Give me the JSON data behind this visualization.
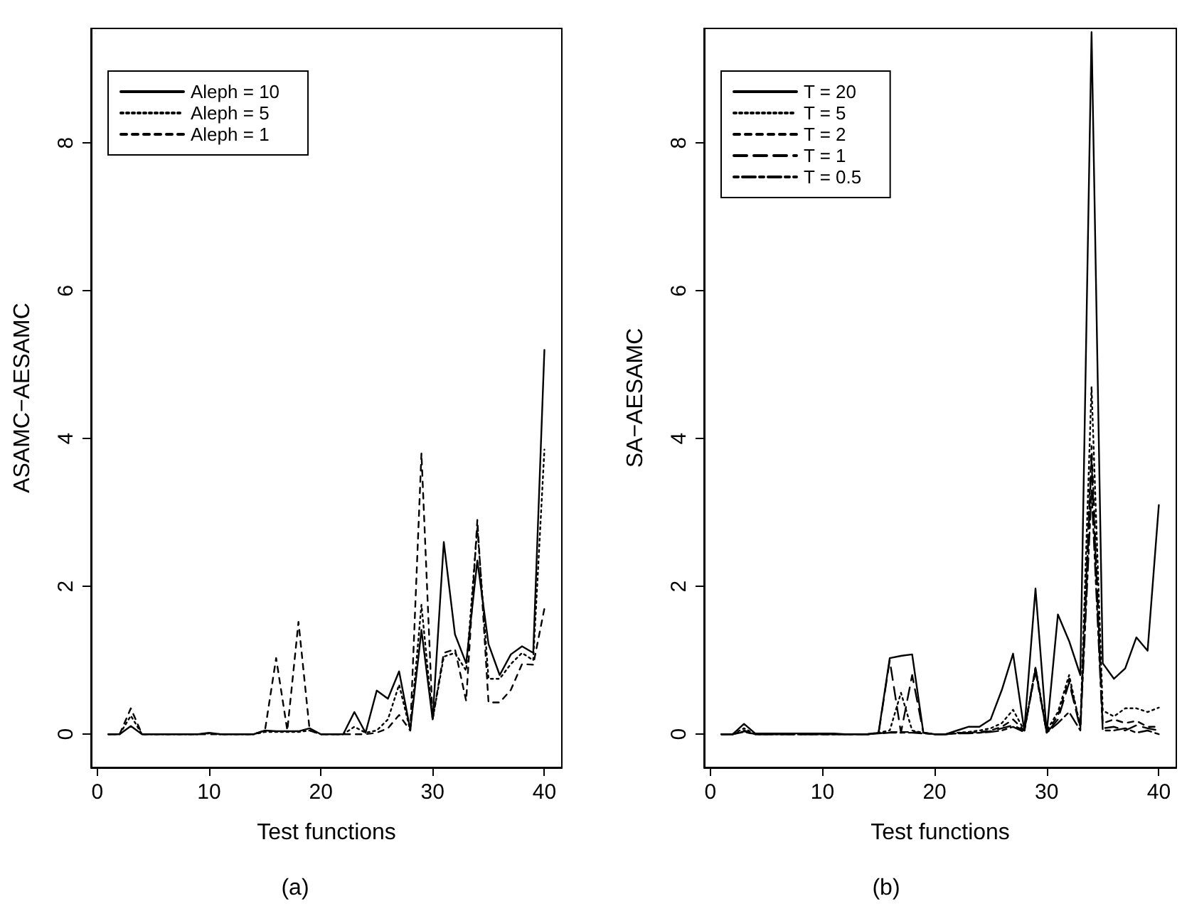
{
  "chart_data": [
    {
      "type": "line",
      "xlabel": "Test functions",
      "ylabel": "ASAMC−AESAMC",
      "annotations": [
        "(a)"
      ],
      "legend": "top left",
      "grid": false,
      "marker": "none",
      "x": [
        1,
        2,
        3,
        4,
        5,
        6,
        7,
        8,
        9,
        10,
        11,
        12,
        13,
        14,
        15,
        16,
        17,
        18,
        19,
        20,
        21,
        22,
        23,
        24,
        25,
        26,
        27,
        28,
        29,
        30,
        31,
        32,
        33,
        34,
        35,
        36,
        37,
        38,
        39,
        40
      ],
      "xlim": [
        -0.56,
        41.56
      ],
      "xticks": [
        0,
        10,
        20,
        30,
        40
      ],
      "ylim": [
        -0.45,
        9.55
      ],
      "yticks": [
        0,
        2,
        4,
        6,
        8
      ],
      "series": [
        {
          "name": "Aleph = 10",
          "color": "#000000",
          "line_style": "solid",
          "values": [
            0,
            0,
            0.11,
            0,
            0,
            0,
            0,
            0,
            0,
            0.02,
            0,
            0,
            0,
            0,
            0.05,
            0.04,
            0.04,
            0.04,
            0.08,
            0,
            0,
            0,
            0.3,
            0.02,
            0.59,
            0.48,
            0.85,
            0.06,
            1.41,
            0.2,
            2.6,
            1.35,
            0.96,
            2.35,
            1.22,
            0.8,
            1.08,
            1.19,
            1.1,
            5.2
          ]
        },
        {
          "name": "Aleph = 5",
          "color": "#000000",
          "line_style": "dotted",
          "values": [
            0,
            0,
            0.25,
            0,
            0,
            0,
            0,
            0,
            0,
            0.01,
            0,
            0,
            0,
            0,
            0.03,
            0.03,
            0.03,
            0.03,
            0.05,
            0,
            0,
            0,
            0.1,
            0.02,
            0.05,
            0.2,
            0.67,
            0.05,
            1.75,
            0.2,
            1.05,
            1.1,
            0.86,
            2.8,
            0.75,
            0.75,
            0.95,
            1.1,
            1.0,
            3.85
          ]
        },
        {
          "name": "Aleph = 1",
          "color": "#000000",
          "line_style": "dashed",
          "values": [
            0,
            0,
            0.35,
            0,
            0,
            0,
            0,
            0,
            0,
            0,
            0,
            0,
            0,
            0,
            0.05,
            1.03,
            0.05,
            1.52,
            0.05,
            0,
            0,
            0,
            0,
            0,
            0.02,
            0.08,
            0.26,
            0.05,
            3.8,
            0.2,
            1.1,
            1.15,
            0.45,
            2.9,
            0.43,
            0.43,
            0.6,
            0.95,
            0.94,
            1.7
          ]
        }
      ]
    },
    {
      "type": "line",
      "xlabel": "Test functions",
      "ylabel": "SA−AESAMC",
      "annotations": [
        "(b)"
      ],
      "legend": "top left",
      "grid": false,
      "marker": "none",
      "x": [
        1,
        2,
        3,
        4,
        5,
        6,
        7,
        8,
        9,
        10,
        11,
        12,
        13,
        14,
        15,
        16,
        17,
        18,
        19,
        20,
        21,
        22,
        23,
        24,
        25,
        26,
        27,
        28,
        29,
        30,
        31,
        32,
        33,
        34,
        35,
        36,
        37,
        38,
        39,
        40
      ],
      "xlim": [
        -0.56,
        41.56
      ],
      "xticks": [
        0,
        10,
        20,
        30,
        40
      ],
      "ylim": [
        -0.45,
        9.55
      ],
      "yticks": [
        0,
        2,
        4,
        6,
        8
      ],
      "series": [
        {
          "name": "T = 20",
          "color": "#000000",
          "line_style": "solid",
          "values": [
            0,
            0,
            0.14,
            0.01,
            0.01,
            0.01,
            0.01,
            0.01,
            0.01,
            0.01,
            0.01,
            0,
            0,
            0,
            0.02,
            1.03,
            1.06,
            1.08,
            0.02,
            0,
            0,
            0.05,
            0.1,
            0.1,
            0.2,
            0.6,
            1.09,
            0.05,
            1.97,
            0.02,
            1.62,
            1.26,
            0.8,
            9.5,
            0.96,
            0.75,
            0.89,
            1.31,
            1.13,
            3.1
          ]
        },
        {
          "name": "T = 5",
          "color": "#000000",
          "line_style": "dotted",
          "values": [
            0,
            0,
            0.08,
            0,
            0,
            0,
            0,
            0,
            0,
            0,
            0,
            0,
            0,
            0,
            0.02,
            0.05,
            0.56,
            0.05,
            0.02,
            0,
            0,
            0.02,
            0.03,
            0.05,
            0.08,
            0.15,
            0.33,
            0.05,
            0.9,
            0.05,
            0.3,
            0.8,
            0.1,
            4.7,
            0.32,
            0.24,
            0.35,
            0.35,
            0.3,
            0.36
          ]
        },
        {
          "name": "T = 2",
          "color": "#000000",
          "line_style": "dashed",
          "values": [
            0,
            0,
            0.05,
            0,
            0,
            0,
            0,
            0,
            0,
            0,
            0,
            0,
            0,
            0,
            0.01,
            0.03,
            0.03,
            0.03,
            0.02,
            0,
            0,
            0.02,
            0.02,
            0.03,
            0.05,
            0.1,
            0.2,
            0.05,
            0.85,
            0.03,
            0.25,
            0.75,
            0.1,
            3.9,
            0.15,
            0.2,
            0.15,
            0.18,
            0.1,
            0.1
          ]
        },
        {
          "name": "T = 1",
          "color": "#000000",
          "line_style": "longdash",
          "values": [
            0,
            0,
            0.04,
            0,
            0,
            0,
            0,
            0,
            0,
            0,
            0,
            0,
            0,
            0,
            0.01,
            1.0,
            0.02,
            0.8,
            0.02,
            0,
            0,
            0.01,
            0.02,
            0.02,
            0.04,
            0.08,
            0.12,
            0.05,
            0.88,
            0.02,
            0.2,
            0.7,
            0.08,
            3.7,
            0.08,
            0.1,
            0.05,
            0.12,
            0.08,
            0.05
          ]
        },
        {
          "name": "T = 0.5",
          "color": "#000000",
          "line_style": "twodash",
          "values": [
            0,
            0,
            0.03,
            0,
            0,
            0,
            0,
            0,
            0,
            0,
            0,
            0,
            0,
            0,
            0.01,
            0.02,
            0.02,
            0.02,
            0.01,
            0,
            0,
            0.01,
            0.01,
            0.02,
            0.03,
            0.05,
            0.1,
            0.03,
            0.9,
            0.02,
            0.15,
            0.3,
            0.05,
            3.3,
            0.05,
            0.05,
            0.08,
            0.02,
            0.05,
            0
          ]
        }
      ]
    }
  ]
}
